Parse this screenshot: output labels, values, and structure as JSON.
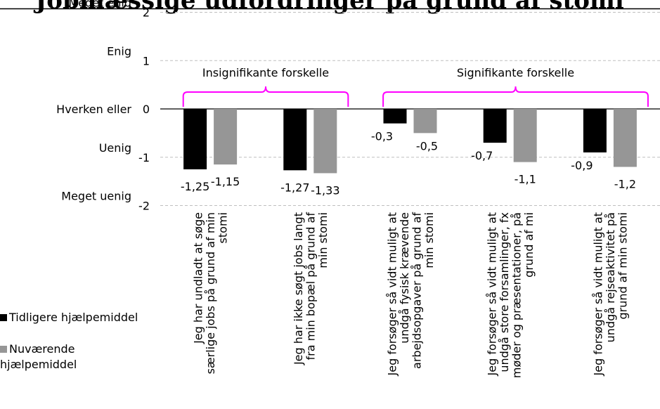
{
  "title": "Jobmæssige udfordringer på grund af stomi",
  "chart_data": {
    "type": "bar",
    "title": "Jobmæssige udfordringer på grund af stomi",
    "ylim": [
      -2,
      2
    ],
    "yticks": [
      -2,
      -1,
      0,
      1,
      2
    ],
    "ytick_descriptions": [
      "Meget uenig",
      "Uenig",
      "Hverken eller",
      "Enig",
      "Meget enig"
    ],
    "grid": true,
    "legend_position": "left",
    "categories": [
      "Jeg har undladt at søge særlige jobs på grund af min stomi",
      "Jeg har ikke søgt jobs langt fra min bopæl på grund af min stomi",
      "Jeg forsøger så vidt muligt at undgå fysisk krævende arbejdsopgaver på grund af min stomi",
      "Jeg forsøger så vidt muligt at undgå store forsamlinger, fx møder og præsentationer, på grund af mi",
      "Jeg forsøger så vidt muligt at undgå rejseaktivitet på grund af min stomi"
    ],
    "category_lines": [
      [
        "Jeg har undladt at søge",
        "særlige jobs på grund af min",
        "stomi"
      ],
      [
        "Jeg har ikke søgt jobs langt",
        "fra min bopæl på grund af",
        "min stomi"
      ],
      [
        "Jeg forsøger så vidt muligt at",
        "undgå fysisk krævende",
        "arbejdsopgaver på grund af",
        "min stomi"
      ],
      [
        "Jeg forsøger så vidt muligt at",
        "undgå store forsamlinger, fx",
        "møder og præsentationer, på",
        "grund af mi"
      ],
      [
        "Jeg forsøger så vidt muligt at",
        "undgå rejseaktivitet på",
        "grund af min stomi"
      ]
    ],
    "series": [
      {
        "name": "Tidligere hjælpemiddel",
        "color": "#000000",
        "values": [
          -1.25,
          -1.27,
          -0.3,
          -0.7,
          -0.9
        ],
        "labels": [
          "-1,25",
          "-1,27",
          "-0,3",
          "-0,7",
          "-0,9"
        ]
      },
      {
        "name": "Nuværende hjælpemiddel",
        "color": "#969696",
        "values": [
          -1.15,
          -1.33,
          -0.5,
          -1.1,
          -1.2
        ],
        "labels": [
          "-1,15",
          "-1,33",
          "-0,5",
          "-1,1",
          "-1,2"
        ]
      }
    ],
    "annotations": [
      {
        "text": "Insignifikante forskelle",
        "categories": [
          0,
          1
        ]
      },
      {
        "text": "Signifikante forskelle",
        "categories": [
          2,
          3,
          4
        ]
      }
    ],
    "bracket_color": "#ff00ff"
  }
}
